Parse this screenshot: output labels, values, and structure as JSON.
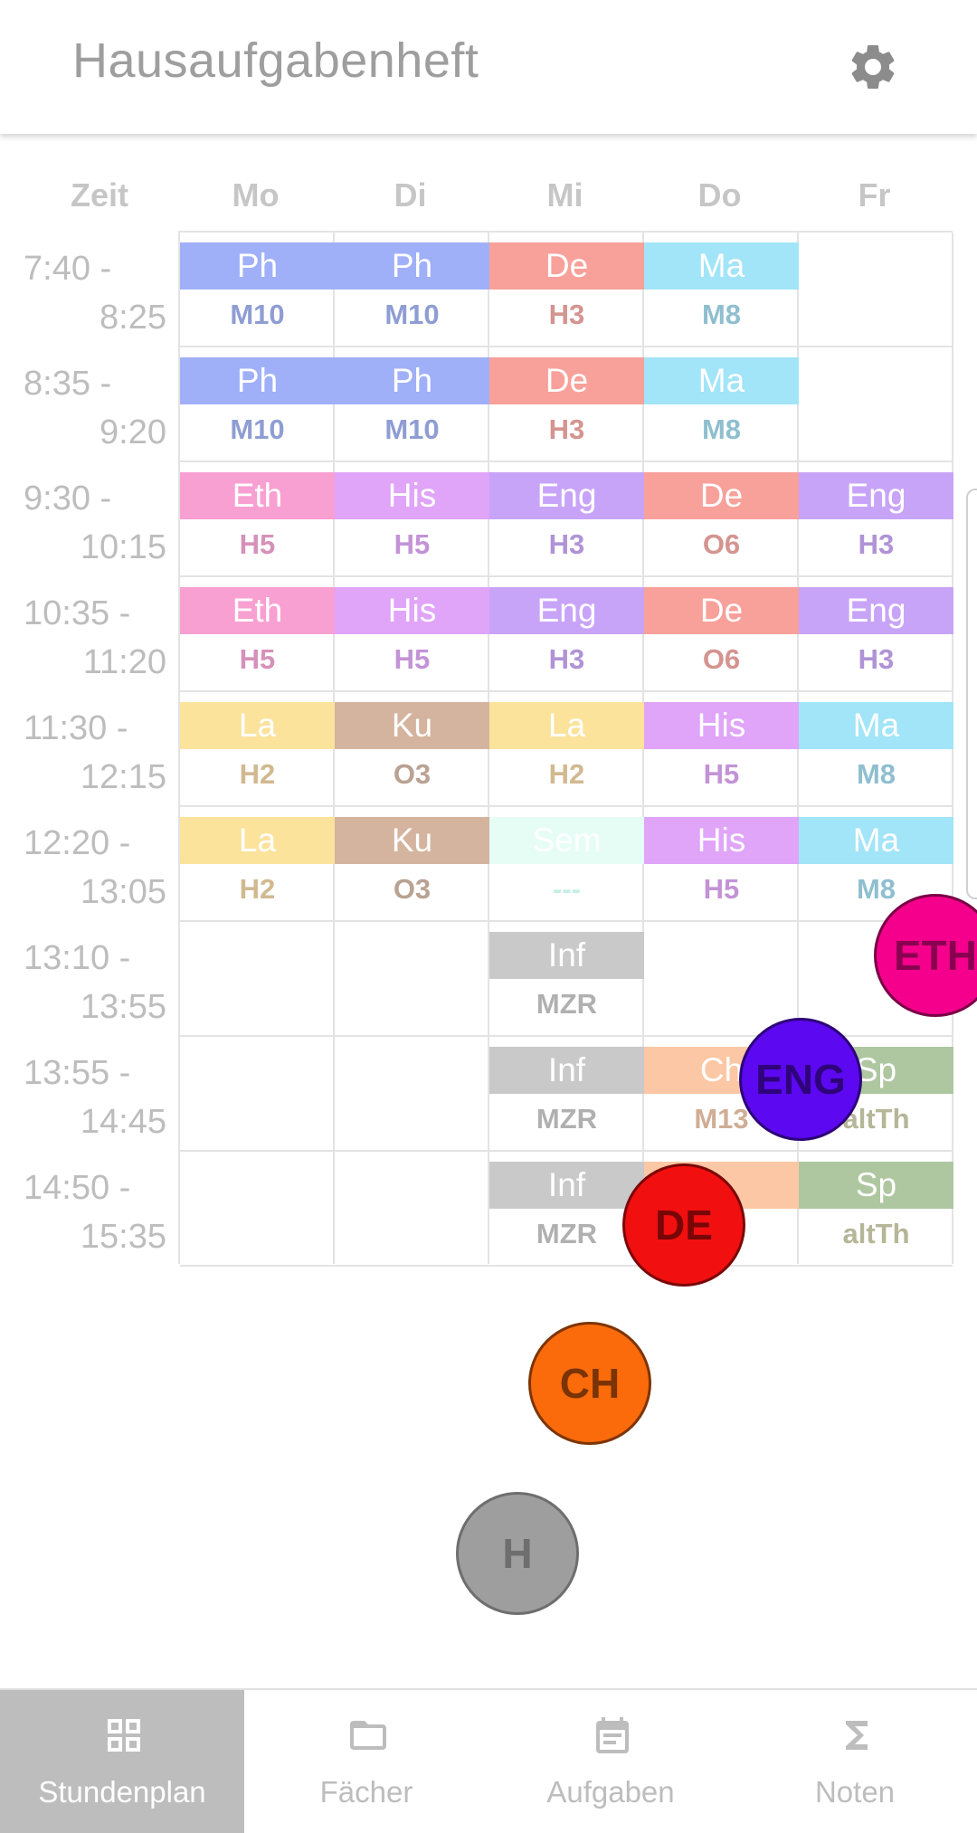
{
  "app": {
    "title": "Hausaufgabenheft",
    "settings_icon": "gear-icon"
  },
  "timetable": {
    "header_time": "Zeit",
    "days": [
      "Mo",
      "Di",
      "Mi",
      "Do",
      "Fr"
    ],
    "periods": [
      {
        "start": "7:40 -",
        "end": "8:25"
      },
      {
        "start": "8:35 -",
        "end": "9:20"
      },
      {
        "start": "9:30 -",
        "end": "10:15"
      },
      {
        "start": "10:35 -",
        "end": "11:20"
      },
      {
        "start": "11:30 -",
        "end": "12:15"
      },
      {
        "start": "12:20 -",
        "end": "13:05"
      },
      {
        "start": "13:10 -",
        "end": "13:55"
      },
      {
        "start": "13:55 -",
        "end": "14:45"
      },
      {
        "start": "14:50 -",
        "end": "15:35"
      }
    ],
    "lessons": [
      {
        "period": 0,
        "day": 0,
        "subject": "Ph",
        "room": "M10",
        "color": "#a0b0f8",
        "room_color": "#8f9dd4"
      },
      {
        "period": 0,
        "day": 1,
        "subject": "Ph",
        "room": "M10",
        "color": "#a0b0f8",
        "room_color": "#8f9dd4"
      },
      {
        "period": 0,
        "day": 2,
        "subject": "De",
        "room": "H3",
        "color": "#f8a09a",
        "room_color": "#d49490"
      },
      {
        "period": 0,
        "day": 3,
        "subject": "Ma",
        "room": "M8",
        "color": "#a2e4f8",
        "room_color": "#8fbfcf"
      },
      {
        "period": 1,
        "day": 0,
        "subject": "Ph",
        "room": "M10",
        "color": "#a0b0f8",
        "room_color": "#8f9dd4"
      },
      {
        "period": 1,
        "day": 1,
        "subject": "Ph",
        "room": "M10",
        "color": "#a0b0f8",
        "room_color": "#8f9dd4"
      },
      {
        "period": 1,
        "day": 2,
        "subject": "De",
        "room": "H3",
        "color": "#f8a09a",
        "room_color": "#d49490"
      },
      {
        "period": 1,
        "day": 3,
        "subject": "Ma",
        "room": "M8",
        "color": "#a2e4f8",
        "room_color": "#8fbfcf"
      },
      {
        "period": 2,
        "day": 0,
        "subject": "Eth",
        "room": "H5",
        "color": "#f8a0d2",
        "room_color": "#d691ba"
      },
      {
        "period": 2,
        "day": 1,
        "subject": "His",
        "room": "H5",
        "color": "#e0a4f8",
        "room_color": "#c393d6"
      },
      {
        "period": 2,
        "day": 2,
        "subject": "Eng",
        "room": "H3",
        "color": "#c8a4f8",
        "room_color": "#b093d6"
      },
      {
        "period": 2,
        "day": 3,
        "subject": "De",
        "room": "O6",
        "color": "#f8a09a",
        "room_color": "#d49490"
      },
      {
        "period": 2,
        "day": 4,
        "subject": "Eng",
        "room": "H3",
        "color": "#c8a4f8",
        "room_color": "#b093d6"
      },
      {
        "period": 3,
        "day": 0,
        "subject": "Eth",
        "room": "H5",
        "color": "#f8a0d2",
        "room_color": "#d691ba"
      },
      {
        "period": 3,
        "day": 1,
        "subject": "His",
        "room": "H5",
        "color": "#e0a4f8",
        "room_color": "#c393d6"
      },
      {
        "period": 3,
        "day": 2,
        "subject": "Eng",
        "room": "H3",
        "color": "#c8a4f8",
        "room_color": "#b093d6"
      },
      {
        "period": 3,
        "day": 3,
        "subject": "De",
        "room": "O6",
        "color": "#f8a09a",
        "room_color": "#d49490"
      },
      {
        "period": 3,
        "day": 4,
        "subject": "Eng",
        "room": "H3",
        "color": "#c8a4f8",
        "room_color": "#b093d6"
      },
      {
        "period": 4,
        "day": 0,
        "subject": "La",
        "room": "H2",
        "color": "#fbe39c",
        "room_color": "#d1b990"
      },
      {
        "period": 4,
        "day": 1,
        "subject": "Ku",
        "room": "O3",
        "color": "#d4b49e",
        "room_color": "#b9a292"
      },
      {
        "period": 4,
        "day": 2,
        "subject": "La",
        "room": "H2",
        "color": "#fbe39c",
        "room_color": "#d1b990"
      },
      {
        "period": 4,
        "day": 3,
        "subject": "His",
        "room": "H5",
        "color": "#e0a4f8",
        "room_color": "#c393d6"
      },
      {
        "period": 4,
        "day": 4,
        "subject": "Ma",
        "room": "M8",
        "color": "#a2e4f8",
        "room_color": "#8fbfcf"
      },
      {
        "period": 5,
        "day": 0,
        "subject": "La",
        "room": "H2",
        "color": "#fbe39c",
        "room_color": "#d1b990"
      },
      {
        "period": 5,
        "day": 1,
        "subject": "Ku",
        "room": "O3",
        "color": "#d4b49e",
        "room_color": "#b9a292"
      },
      {
        "period": 5,
        "day": 2,
        "subject": "Sem",
        "room": "---",
        "color": "#e6fdf6",
        "room_color": "#c4efe6",
        "text_color": "#ffffff"
      },
      {
        "period": 5,
        "day": 3,
        "subject": "His",
        "room": "H5",
        "color": "#e0a4f8",
        "room_color": "#c393d6"
      },
      {
        "period": 5,
        "day": 4,
        "subject": "Ma",
        "room": "M8",
        "color": "#a2e4f8",
        "room_color": "#8fbfcf"
      },
      {
        "period": 6,
        "day": 2,
        "subject": "Inf",
        "room": "MZR",
        "color": "#c9c9c9",
        "room_color": "#b0b0b0"
      },
      {
        "period": 7,
        "day": 2,
        "subject": "Inf",
        "room": "MZR",
        "color": "#c9c9c9",
        "room_color": "#b0b0b0"
      },
      {
        "period": 7,
        "day": 3,
        "subject": "Ch",
        "room": "M13",
        "color": "#fcc7a4",
        "room_color": "#d0ad96"
      },
      {
        "period": 7,
        "day": 4,
        "subject": "Sp",
        "room": "altTh",
        "color": "#aec7a0",
        "room_color": "#b6b698"
      },
      {
        "period": 8,
        "day": 2,
        "subject": "Inf",
        "room": "MZR",
        "color": "#c9c9c9",
        "room_color": "#b0b0b0"
      },
      {
        "period": 8,
        "day": 3,
        "subject": "",
        "room": "",
        "color": "#fcc7a4",
        "room_color": "#d0ad96"
      },
      {
        "period": 8,
        "day": 4,
        "subject": "Sp",
        "room": "altTh",
        "color": "#aec7a0",
        "room_color": "#b6b698"
      }
    ]
  },
  "fab_bubbles": [
    {
      "label": "ETH",
      "fill": "#f5008c",
      "border": "#7a0046",
      "text": "#8a0050"
    },
    {
      "label": "ENG",
      "fill": "#5c08f0",
      "border": "#2d0478",
      "text": "#2f037a"
    },
    {
      "label": "DE",
      "fill": "#f20f0f",
      "border": "#7a0808",
      "text": "#780606"
    },
    {
      "label": "CH",
      "fill": "#fb6b0b",
      "border": "#7d3506",
      "text": "#7a3404"
    },
    {
      "label": "H",
      "fill": "#9e9e9e",
      "border": "#6e6e6e",
      "text": "#6e6e6e"
    }
  ],
  "bottom_nav": [
    {
      "label": "Stundenplan",
      "icon": "grid-icon",
      "active": true
    },
    {
      "label": "Fächer",
      "icon": "folder-icon",
      "active": false
    },
    {
      "label": "Aufgaben",
      "icon": "calendar-note-icon",
      "active": false
    },
    {
      "label": "Noten",
      "icon": "sigma-icon",
      "active": false
    }
  ]
}
